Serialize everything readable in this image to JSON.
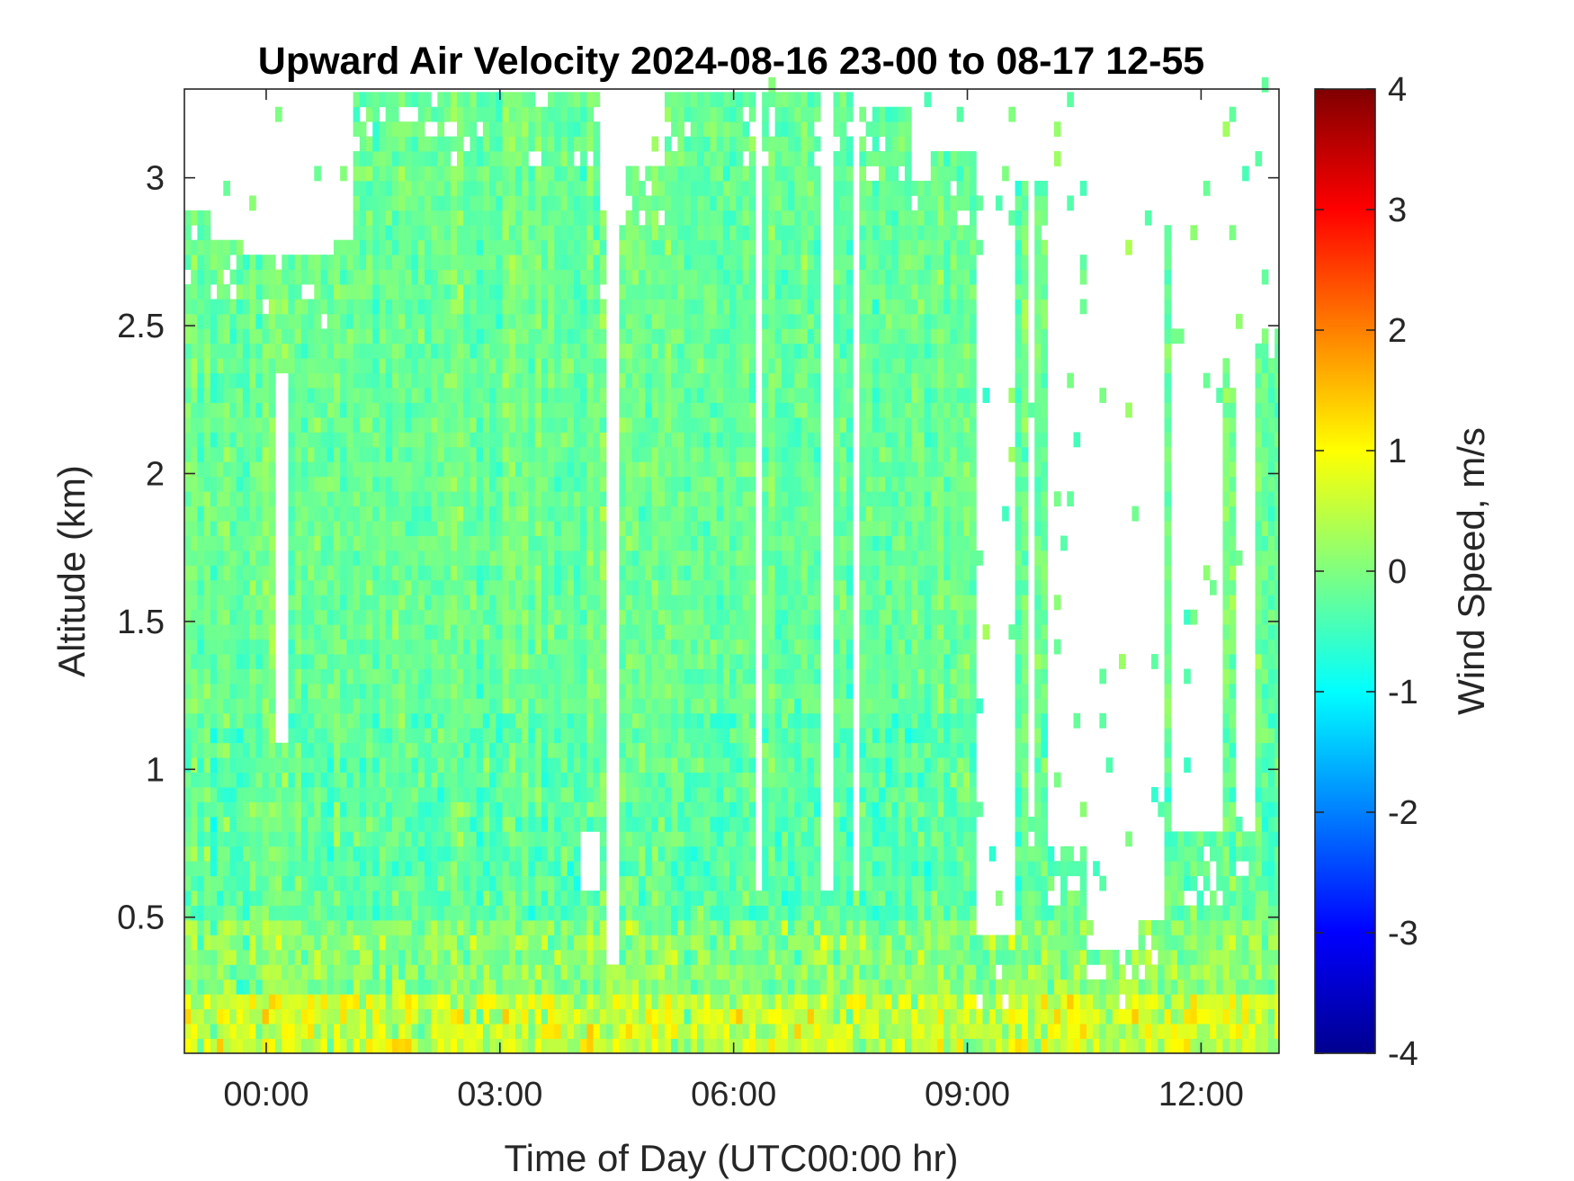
{
  "chart_data": {
    "type": "heatmap",
    "title": "Upward Air Velocity 2024-08-16 23-00 to 08-17 12-55",
    "xlabel": "Time of Day (UTC00:00 hr)",
    "ylabel": "Altitude (km)",
    "x_ticks": [
      "00:00",
      "03:00",
      "06:00",
      "09:00",
      "12:00"
    ],
    "x_tick_values_hours": [
      0,
      3,
      6,
      9,
      12
    ],
    "xlim_hours": [
      -1.05,
      13.0
    ],
    "y_ticks": [
      "0.5",
      "1",
      "1.5",
      "2",
      "2.5",
      "3"
    ],
    "y_tick_values": [
      0.5,
      1,
      1.5,
      2,
      2.5,
      3
    ],
    "ylim": [
      0.04,
      3.3
    ],
    "colorbar": {
      "label": "Wind Speed, m/s",
      "ticks": [
        "4",
        "3",
        "2",
        "1",
        "0",
        "-1",
        "-2",
        "-3",
        "-4"
      ],
      "tick_values": [
        4,
        3,
        2,
        1,
        0,
        -1,
        -2,
        -3,
        -4
      ],
      "range": [
        -4,
        4
      ],
      "colormap": "jet"
    },
    "time_step_hours": 0.0833,
    "range_step_km": 0.05,
    "coverage_top_km": [
      {
        "from": -1.05,
        "to": -0.75,
        "top": 2.9
      },
      {
        "from": -0.75,
        "to": -0.3,
        "top": 2.8
      },
      {
        "from": -0.3,
        "to": 0.3,
        "top": 2.75
      },
      {
        "from": 0.3,
        "to": 0.8,
        "top": 2.72
      },
      {
        "from": 0.8,
        "to": 1.1,
        "top": 2.78
      },
      {
        "from": 1.1,
        "to": 4.3,
        "top": 3.3
      },
      {
        "from": 4.3,
        "to": 4.6,
        "top": 2.85
      },
      {
        "from": 4.6,
        "to": 5.1,
        "top": 3.05
      },
      {
        "from": 5.1,
        "to": 7.5,
        "top": 3.3
      },
      {
        "from": 7.5,
        "to": 8.3,
        "top": 3.25
      },
      {
        "from": 8.3,
        "to": 8.55,
        "top": 3.0
      },
      {
        "from": 8.55,
        "to": 9.15,
        "top": 3.1
      },
      {
        "from": 9.15,
        "to": 9.65,
        "top": 0.45
      },
      {
        "from": 9.65,
        "to": 9.75,
        "top": 3.0
      },
      {
        "from": 9.75,
        "to": 9.9,
        "top": 0.85
      },
      {
        "from": 9.9,
        "to": 10.0,
        "top": 2.97
      },
      {
        "from": 10.0,
        "to": 10.5,
        "top": 0.75
      },
      {
        "from": 10.5,
        "to": 11.2,
        "top": 0.38
      },
      {
        "from": 11.2,
        "to": 11.5,
        "top": 0.5
      },
      {
        "from": 11.5,
        "to": 11.6,
        "top": 2.85
      },
      {
        "from": 11.6,
        "to": 12.3,
        "top": 0.8
      },
      {
        "from": 12.3,
        "to": 12.45,
        "top": 2.4
      },
      {
        "from": 12.45,
        "to": 12.7,
        "top": 0.85
      },
      {
        "from": 12.7,
        "to": 13.0,
        "top": 2.5
      }
    ],
    "gaps": [
      {
        "from": 4.35,
        "to": 4.5,
        "bottom": 0.35
      },
      {
        "from": 6.3,
        "to": 6.4,
        "bottom": 0.6
      },
      {
        "from": 7.15,
        "to": 7.25,
        "bottom": 0.6
      },
      {
        "from": 7.55,
        "to": 7.65,
        "bottom": 0.6
      },
      {
        "from": 0.1,
        "to": 0.3,
        "bottom": 1.1,
        "top": 2.35
      },
      {
        "from": 4.0,
        "to": 4.3,
        "bottom": 0.6,
        "top": 0.8
      }
    ],
    "value_profile": [
      {
        "alt_max": 0.25,
        "mean": 0.6,
        "spread": 1.2
      },
      {
        "alt_max": 0.5,
        "mean": 0.1,
        "spread": 0.9
      },
      {
        "alt_max": 1.2,
        "mean": -0.25,
        "spread": 0.7
      },
      {
        "alt_max": 3.3,
        "mean": -0.15,
        "spread": 0.55
      }
    ]
  }
}
